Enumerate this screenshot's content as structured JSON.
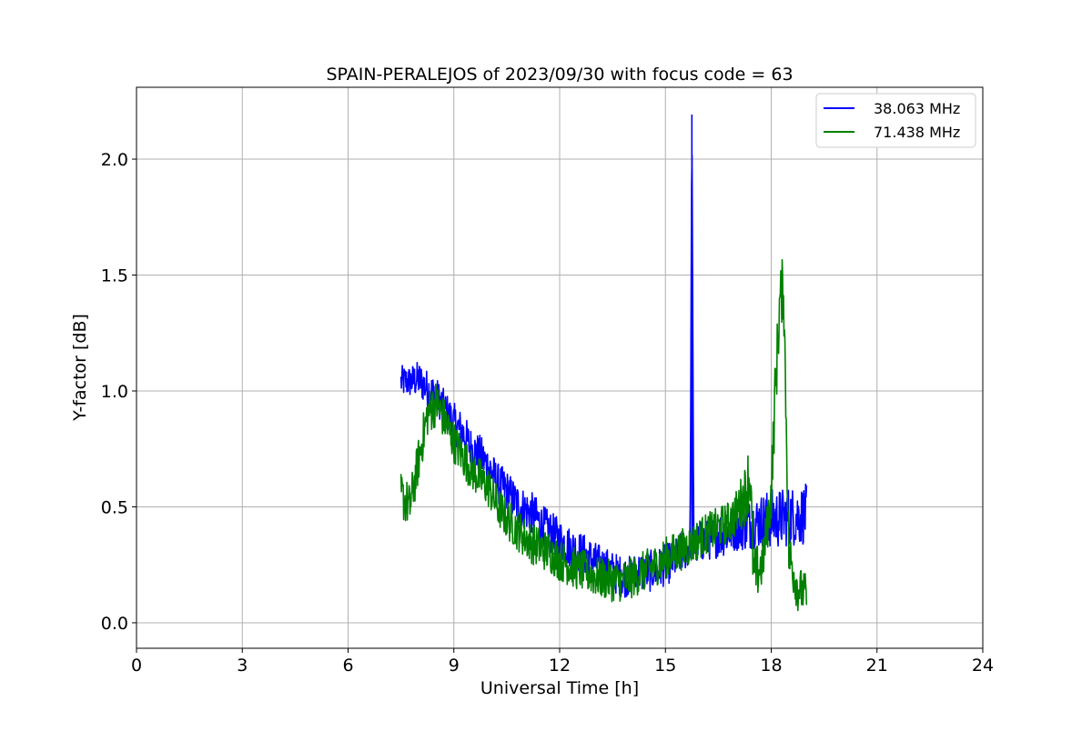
{
  "chart_data": {
    "type": "line",
    "title": "SPAIN-PERALEJOS of 2023/09/30 with focus code = 63",
    "xlabel": "Universal Time [h]",
    "ylabel": "Y-factor [dB]",
    "xlim": [
      0,
      24
    ],
    "ylim": [
      -0.11,
      2.31
    ],
    "xticks": [
      0,
      3,
      6,
      9,
      12,
      15,
      18,
      21,
      24
    ],
    "yticks": [
      0.0,
      0.5,
      1.0,
      1.5,
      2.0
    ],
    "xtick_labels": [
      "0",
      "3",
      "6",
      "9",
      "12",
      "15",
      "18",
      "21",
      "24"
    ],
    "ytick_labels": [
      "0.0",
      "0.5",
      "1.0",
      "1.5",
      "2.0"
    ],
    "grid": true,
    "legend": "top-right",
    "series": [
      {
        "name": "38.063 MHz",
        "color": "#0000ff",
        "x": [
          7.5,
          7.75,
          8.0,
          8.25,
          8.5,
          8.75,
          9.0,
          9.25,
          9.5,
          9.75,
          10.0,
          10.25,
          10.5,
          10.75,
          11.0,
          11.25,
          11.5,
          11.75,
          12.0,
          12.25,
          12.5,
          12.75,
          13.0,
          13.25,
          13.5,
          13.75,
          14.0,
          14.25,
          14.5,
          14.75,
          15.0,
          15.25,
          15.5,
          15.7,
          15.75,
          15.8,
          16.0,
          16.25,
          16.5,
          16.75,
          17.0,
          17.25,
          17.5,
          17.75,
          18.0,
          18.25,
          18.5,
          18.75,
          19.0
        ],
        "y": [
          1.04,
          1.04,
          1.05,
          1.01,
          0.98,
          0.92,
          0.86,
          0.82,
          0.75,
          0.72,
          0.67,
          0.6,
          0.57,
          0.52,
          0.49,
          0.47,
          0.42,
          0.39,
          0.36,
          0.33,
          0.31,
          0.29,
          0.26,
          0.24,
          0.22,
          0.2,
          0.2,
          0.22,
          0.22,
          0.23,
          0.25,
          0.27,
          0.31,
          0.33,
          2.19,
          0.33,
          0.35,
          0.36,
          0.38,
          0.39,
          0.41,
          0.42,
          0.43,
          0.44,
          0.45,
          0.45,
          0.46,
          0.46,
          0.47
        ],
        "noise": [
          0.07,
          0.07,
          0.08,
          0.08,
          0.08,
          0.08,
          0.09,
          0.09,
          0.09,
          0.09,
          0.09,
          0.09,
          0.09,
          0.09,
          0.09,
          0.09,
          0.09,
          0.09,
          0.09,
          0.09,
          0.09,
          0.09,
          0.09,
          0.09,
          0.09,
          0.09,
          0.09,
          0.09,
          0.09,
          0.09,
          0.09,
          0.09,
          0.09,
          0.09,
          0.0,
          0.09,
          0.09,
          0.09,
          0.1,
          0.1,
          0.1,
          0.11,
          0.11,
          0.12,
          0.13,
          0.13,
          0.13,
          0.13,
          0.13
        ]
      },
      {
        "name": "71.438 MHz",
        "color": "#008000",
        "x": [
          7.5,
          7.75,
          8.0,
          8.25,
          8.5,
          8.75,
          9.0,
          9.25,
          9.5,
          9.75,
          10.0,
          10.25,
          10.5,
          10.75,
          11.0,
          11.25,
          11.5,
          11.75,
          12.0,
          12.25,
          12.5,
          12.75,
          13.0,
          13.25,
          13.5,
          13.75,
          14.0,
          14.25,
          14.5,
          14.75,
          15.0,
          15.25,
          15.5,
          15.75,
          16.0,
          16.25,
          16.5,
          16.75,
          17.0,
          17.25,
          17.4,
          17.5,
          17.75,
          18.0,
          18.1,
          18.25,
          18.35,
          18.5,
          18.75,
          19.0
        ],
        "y": [
          0.55,
          0.5,
          0.7,
          0.9,
          0.95,
          0.87,
          0.78,
          0.72,
          0.66,
          0.62,
          0.58,
          0.5,
          0.45,
          0.41,
          0.37,
          0.34,
          0.32,
          0.3,
          0.27,
          0.25,
          0.23,
          0.22,
          0.2,
          0.19,
          0.18,
          0.18,
          0.19,
          0.21,
          0.23,
          0.25,
          0.28,
          0.3,
          0.32,
          0.34,
          0.37,
          0.39,
          0.41,
          0.43,
          0.47,
          0.55,
          0.65,
          0.2,
          0.25,
          0.55,
          0.95,
          1.4,
          1.45,
          0.3,
          0.15,
          0.12
        ],
        "noise": [
          0.1,
          0.1,
          0.1,
          0.1,
          0.1,
          0.09,
          0.09,
          0.09,
          0.09,
          0.09,
          0.09,
          0.09,
          0.09,
          0.09,
          0.09,
          0.09,
          0.09,
          0.09,
          0.09,
          0.09,
          0.09,
          0.09,
          0.09,
          0.09,
          0.09,
          0.09,
          0.09,
          0.09,
          0.09,
          0.09,
          0.09,
          0.09,
          0.09,
          0.09,
          0.09,
          0.09,
          0.09,
          0.09,
          0.1,
          0.13,
          0.16,
          0.13,
          0.1,
          0.12,
          0.15,
          0.14,
          0.14,
          0.12,
          0.1,
          0.09
        ]
      }
    ]
  }
}
